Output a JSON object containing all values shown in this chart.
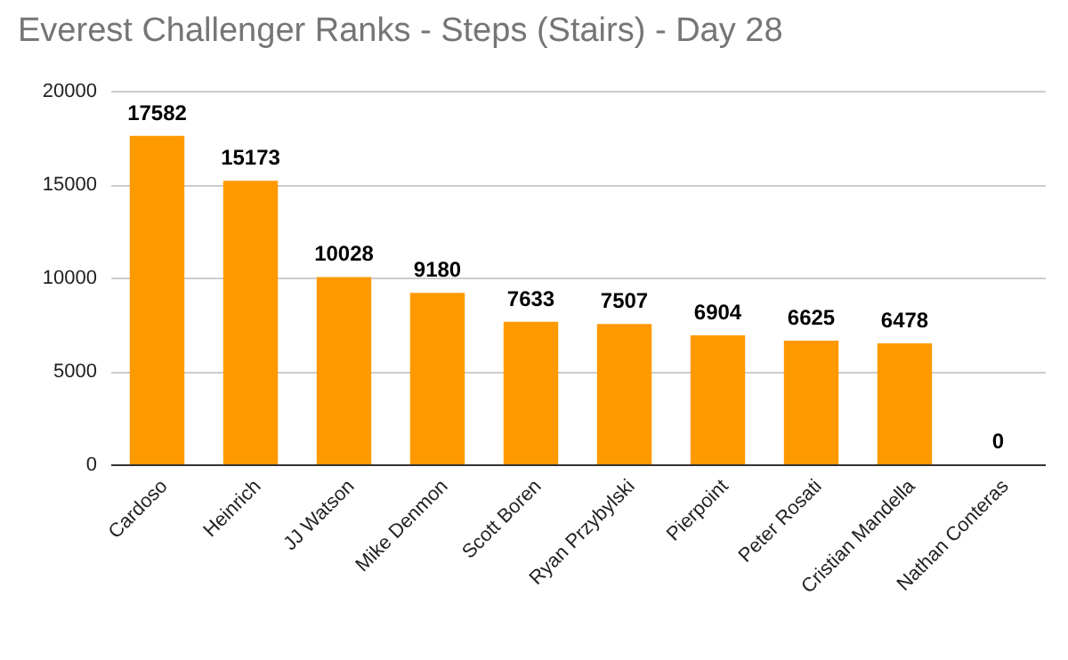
{
  "chart_data": {
    "type": "bar",
    "title": "Everest Challenger Ranks - Steps (Stairs) - Day 28",
    "categories": [
      "Cardoso",
      "Heinrich",
      "JJ Watson",
      "Mike Denmon",
      "Scott Boren",
      "Ryan Przybylski",
      "Pierpoint",
      "Peter Rosati",
      "Cristian Mandella",
      "Nathan Conteras"
    ],
    "values": [
      17582,
      15173,
      10028,
      9180,
      7633,
      7507,
      6904,
      6625,
      6478,
      0
    ],
    "color": "#ff9900",
    "ylim": [
      0,
      20000
    ],
    "yticks": [
      0,
      5000,
      10000,
      15000,
      20000
    ],
    "grid": "y",
    "data_labels": true
  }
}
